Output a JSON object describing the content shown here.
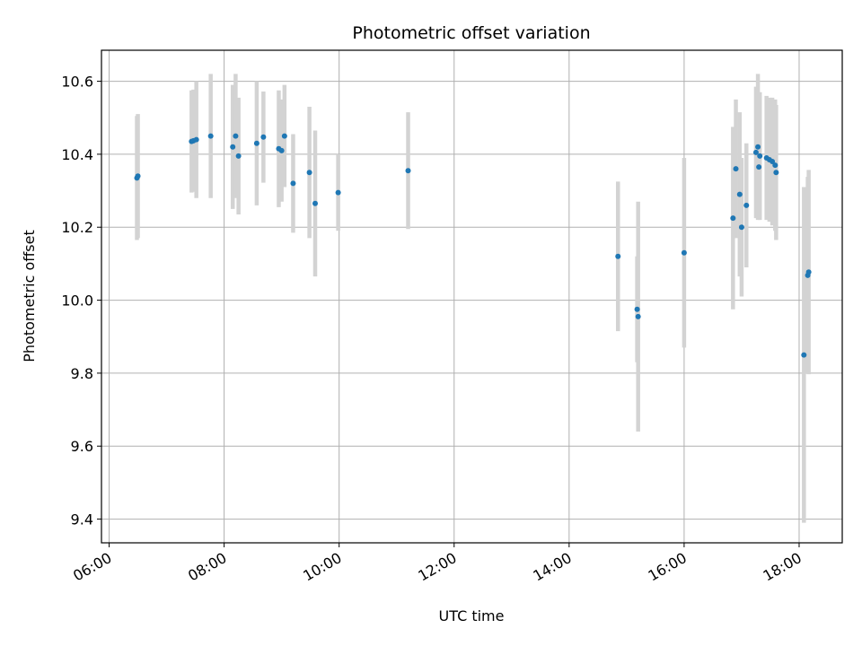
{
  "chart_data": {
    "type": "scatter",
    "title": "Photometric offset variation",
    "xlabel": "UTC time",
    "ylabel": "Photometric offset",
    "x_ticks": [
      "06:00",
      "08:00",
      "10:00",
      "12:00",
      "14:00",
      "16:00",
      "18:00"
    ],
    "y_ticks": [
      "9.4",
      "9.6",
      "9.8",
      "10.0",
      "10.2",
      "10.4",
      "10.6"
    ],
    "xlim": [
      "05:52",
      "18:45"
    ],
    "ylim": [
      9.335,
      10.685
    ],
    "grid": true,
    "colors": {
      "point": "#1f77b4",
      "errorbar": "#d3d3d3",
      "grid": "#b0b0b0"
    },
    "points": [
      {
        "t": "06:29",
        "y": 10.335,
        "err": 0.17
      },
      {
        "t": "06:30",
        "y": 10.34,
        "err": 0.17
      },
      {
        "t": "07:26",
        "y": 10.435,
        "err": 0.14
      },
      {
        "t": "07:28",
        "y": 10.437,
        "err": 0.14
      },
      {
        "t": "07:31",
        "y": 10.44,
        "err": 0.16
      },
      {
        "t": "07:46",
        "y": 10.45,
        "err": 0.17
      },
      {
        "t": "08:09",
        "y": 10.42,
        "err": 0.17
      },
      {
        "t": "08:12",
        "y": 10.45,
        "err": 0.17
      },
      {
        "t": "08:15",
        "y": 10.395,
        "err": 0.16
      },
      {
        "t": "08:34",
        "y": 10.43,
        "err": 0.17
      },
      {
        "t": "08:41",
        "y": 10.447,
        "err": 0.125
      },
      {
        "t": "08:57",
        "y": 10.415,
        "err": 0.16
      },
      {
        "t": "09:00",
        "y": 10.41,
        "err": 0.14
      },
      {
        "t": "09:03",
        "y": 10.45,
        "err": 0.14
      },
      {
        "t": "09:12",
        "y": 10.32,
        "err": 0.135
      },
      {
        "t": "09:29",
        "y": 10.35,
        "err": 0.18
      },
      {
        "t": "09:35",
        "y": 10.265,
        "err": 0.2
      },
      {
        "t": "09:59",
        "y": 10.295,
        "err": 0.105
      },
      {
        "t": "11:12",
        "y": 10.355,
        "err": 0.16
      },
      {
        "t": "14:51",
        "y": 10.12,
        "err": 0.205
      },
      {
        "t": "15:11",
        "y": 9.975,
        "err": 0.145
      },
      {
        "t": "15:12",
        "y": 9.955,
        "err": 0.315
      },
      {
        "t": "16:00",
        "y": 10.13,
        "err": 0.26
      },
      {
        "t": "16:51",
        "y": 10.225,
        "err": 0.25
      },
      {
        "t": "16:54",
        "y": 10.36,
        "err": 0.19
      },
      {
        "t": "16:58",
        "y": 10.29,
        "err": 0.225
      },
      {
        "t": "17:00",
        "y": 10.2,
        "err": 0.19
      },
      {
        "t": "17:05",
        "y": 10.26,
        "err": 0.17
      },
      {
        "t": "17:15",
        "y": 10.405,
        "err": 0.18
      },
      {
        "t": "17:17",
        "y": 10.42,
        "err": 0.2
      },
      {
        "t": "17:18",
        "y": 10.365,
        "err": 0.14
      },
      {
        "t": "17:19",
        "y": 10.395,
        "err": 0.175
      },
      {
        "t": "17:26",
        "y": 10.39,
        "err": 0.17
      },
      {
        "t": "17:29",
        "y": 10.385,
        "err": 0.17
      },
      {
        "t": "17:32",
        "y": 10.38,
        "err": 0.175
      },
      {
        "t": "17:35",
        "y": 10.37,
        "err": 0.18
      },
      {
        "t": "17:36",
        "y": 10.35,
        "err": 0.185
      },
      {
        "t": "18:05",
        "y": 9.85,
        "err": 0.46
      },
      {
        "t": "18:09",
        "y": 10.068,
        "err": 0.27
      },
      {
        "t": "18:10",
        "y": 10.077,
        "err": 0.28
      }
    ]
  }
}
